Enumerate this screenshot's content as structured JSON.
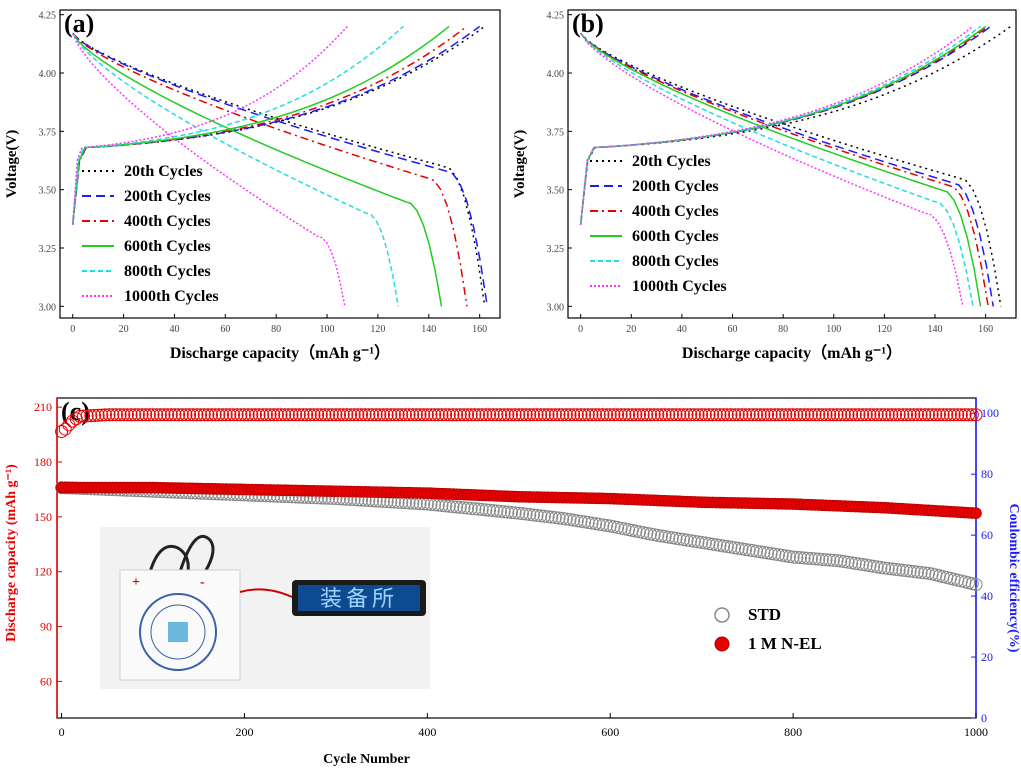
{
  "panels": [
    {
      "id": "a",
      "label": "(a)",
      "chart_data": {
        "type": "line",
        "xlabel": "Discharge capacity（mAh g⁻¹）",
        "ylabel": "Voltage(V)",
        "xlim": [
          -5,
          168
        ],
        "ylim": [
          2.95,
          4.27
        ],
        "xticks": [
          "0",
          "20",
          "40",
          "60",
          "80",
          "100",
          "120",
          "140",
          "160"
        ],
        "yticks": [
          "3.00",
          "3.25",
          "3.50",
          "3.75",
          "4.00",
          "4.25"
        ],
        "legend_position": "middle-left",
        "series": [
          {
            "name": "20th Cycles",
            "color": "#000000",
            "dash": "2,4",
            "charge_end_x": 162,
            "charge_end_y": 4.2,
            "discharge_end_x": 162,
            "knee": 3.6
          },
          {
            "name": "200th Cycles",
            "color": "#1a1aff",
            "dash": "9,5",
            "charge_end_x": 160,
            "charge_end_y": 4.2,
            "discharge_end_x": 163,
            "knee": 3.58
          },
          {
            "name": "400th Cycles",
            "color": "#e60000",
            "dash": "8,4,2,4",
            "charge_end_x": 155,
            "charge_end_y": 4.2,
            "discharge_end_x": 155,
            "knee": 3.55
          },
          {
            "name": "600th Cycles",
            "color": "#22cc22",
            "dash": "none",
            "charge_end_x": 148,
            "charge_end_y": 4.2,
            "discharge_end_x": 145,
            "knee": 3.45
          },
          {
            "name": "800th Cycles",
            "color": "#22dddd",
            "dash": "5,3",
            "charge_end_x": 130,
            "charge_end_y": 4.2,
            "discharge_end_x": 128,
            "knee": 3.4
          },
          {
            "name": "1000th Cycles",
            "color": "#ff33ff",
            "dash": "2,2",
            "charge_end_x": 108,
            "charge_end_y": 4.2,
            "discharge_end_x": 107,
            "knee": 3.3
          }
        ]
      }
    },
    {
      "id": "b",
      "label": "(b)",
      "chart_data": {
        "type": "line",
        "xlabel": "Discharge capacity（mAh g⁻¹）",
        "ylabel": "Voltage(V)",
        "xlim": [
          -5,
          172
        ],
        "ylim": [
          2.95,
          4.27
        ],
        "xticks": [
          "0",
          "20",
          "40",
          "60",
          "80",
          "100",
          "120",
          "140",
          "160"
        ],
        "yticks": [
          "3.00",
          "3.25",
          "3.50",
          "3.75",
          "4.00",
          "4.25"
        ],
        "legend_position": "middle-left",
        "series": [
          {
            "name": "20th Cycles",
            "color": "#000000",
            "dash": "2,4",
            "charge_end_x": 170,
            "charge_end_y": 4.2,
            "discharge_end_x": 166,
            "knee": 3.55
          },
          {
            "name": "200th Cycles",
            "color": "#1a1aff",
            "dash": "9,5",
            "charge_end_x": 162,
            "charge_end_y": 4.2,
            "discharge_end_x": 163,
            "knee": 3.53
          },
          {
            "name": "400th Cycles",
            "color": "#e60000",
            "dash": "8,4,2,4",
            "charge_end_x": 161,
            "charge_end_y": 4.2,
            "discharge_end_x": 161,
            "knee": 3.52
          },
          {
            "name": "600th Cycles",
            "color": "#22cc22",
            "dash": "none",
            "charge_end_x": 160,
            "charge_end_y": 4.2,
            "discharge_end_x": 158,
            "knee": 3.5
          },
          {
            "name": "800th Cycles",
            "color": "#22dddd",
            "dash": "5,3",
            "charge_end_x": 158,
            "charge_end_y": 4.2,
            "discharge_end_x": 155,
            "knee": 3.45
          },
          {
            "name": "1000th Cycles",
            "color": "#ff33ff",
            "dash": "2,2",
            "charge_end_x": 155,
            "charge_end_y": 4.2,
            "discharge_end_x": 151,
            "knee": 3.4
          }
        ]
      }
    },
    {
      "id": "c",
      "label": "(c)",
      "chart_data": {
        "type": "scatter",
        "xlabel": "Cycle Number",
        "ylabel_left": "Discharge capacity (mAh g⁻¹)",
        "ylabel_right": "Coulombic efficiency(%)",
        "xlim": [
          -5,
          1000
        ],
        "ylim_left": [
          40,
          215
        ],
        "ylim_right": [
          0,
          105
        ],
        "xticks": [
          "0",
          "200",
          "400",
          "600",
          "800",
          "1000"
        ],
        "yticks_left": [
          "60",
          "90",
          "120",
          "150",
          "180",
          "210"
        ],
        "yticks_right": [
          "0",
          "20",
          "40",
          "60",
          "80",
          "100"
        ],
        "left_axis_color": "#e60000",
        "right_axis_color": "#1a1aff",
        "legend_position": "lower-right",
        "series": [
          {
            "name": "STD",
            "marker": "open-circle",
            "color": "#888888",
            "cycles": [
              0,
              100,
              200,
              300,
              400,
              500,
              550,
              600,
              650,
              700,
              750,
              800,
              850,
              900,
              950,
              1000
            ],
            "capacity": [
              166,
              164,
              162,
              160,
              157,
              152,
              149,
              145,
              140,
              136,
              132,
              128,
              126,
              122,
              119,
              113
            ]
          },
          {
            "name": "1 M N-EL",
            "marker": "filled-circle",
            "color": "#e60000",
            "cycles": [
              0,
              100,
              200,
              300,
              400,
              500,
              600,
              700,
              800,
              900,
              1000
            ],
            "capacity": [
              166,
              166,
              165,
              164,
              163,
              161,
              160,
              158,
              157,
              155,
              152
            ]
          },
          {
            "name": "Coulombic efficiency",
            "marker": "open-circle",
            "color": "#e60000",
            "cycles": [
              0,
              5,
              10,
              20,
              50,
              100,
              1000
            ],
            "efficiency": [
              94,
              95,
              97,
              99,
              99.5,
              99.5,
              99.5
            ]
          }
        ]
      },
      "inset": {
        "display_text": "装备所",
        "pouch_mark_plus": "+",
        "pouch_mark_minus": "-"
      }
    }
  ]
}
